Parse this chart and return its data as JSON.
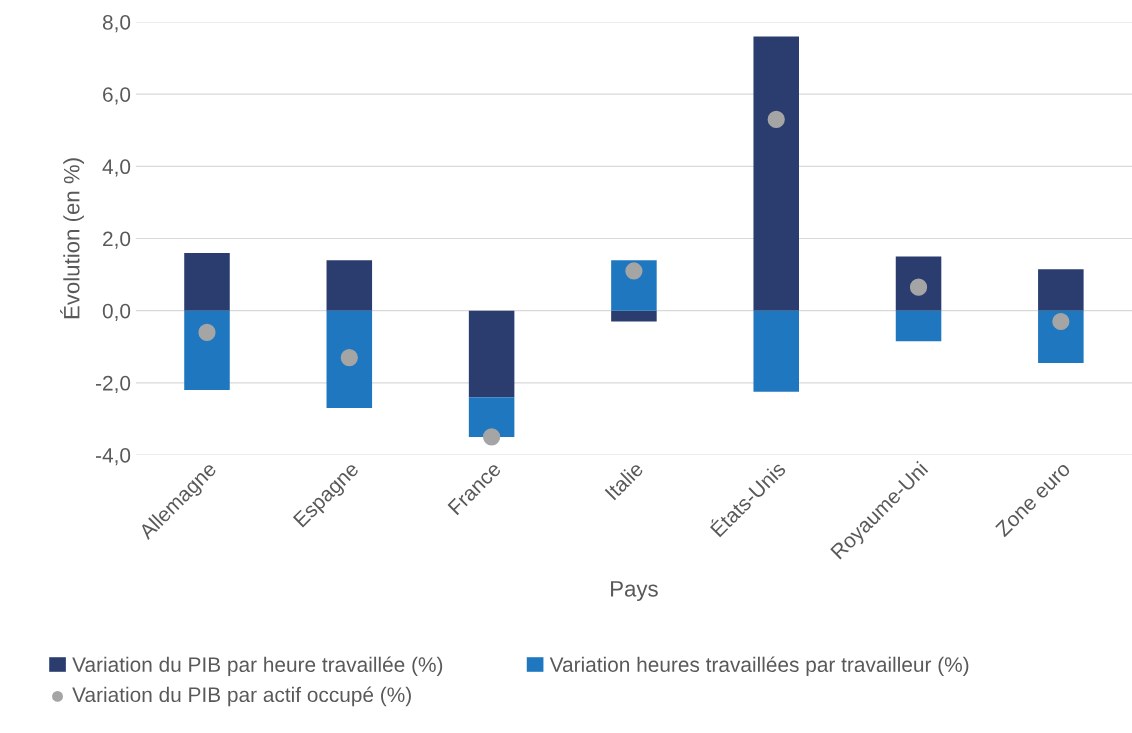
{
  "chart_data": {
    "type": "bar",
    "stacked": true,
    "xlabel": "Pays",
    "ylabel": "Évolution (en %)",
    "categories": [
      "Allemagne",
      "Espagne",
      "France",
      "Italie",
      "États-Unis",
      "Royaume-Uni",
      "Zone euro"
    ],
    "series": [
      {
        "name": "Variation du PIB par heure travaillée (%)",
        "color": "#2a3d6e",
        "values": [
          1.6,
          1.4,
          -2.4,
          -0.3,
          7.6,
          1.5,
          1.15
        ]
      },
      {
        "name": "Variation heures travaillées par travailleur (%)",
        "color": "#1f77c0",
        "values": [
          -2.2,
          -2.7,
          -1.1,
          1.4,
          -2.25,
          -0.85,
          -1.45
        ]
      },
      {
        "name": "Variation du PIB par actif occupé (%)",
        "type": "scatter",
        "color": "#a5a5a5",
        "x": [
          "Allemagne",
          "Espagne",
          "France",
          "Italie",
          "États-Unis",
          "Royaume-Uni",
          "Zone euro"
        ],
        "values": [
          -0.6,
          -1.3,
          -3.5,
          1.1,
          5.3,
          0.65,
          -0.3
        ]
      }
    ],
    "ylim": [
      -4,
      8
    ],
    "yticks": [
      {
        "value": -4,
        "label": "-4,0"
      },
      {
        "value": -2,
        "label": "-2,0"
      },
      {
        "value": 0,
        "label": "0,0"
      },
      {
        "value": 2,
        "label": "2,0"
      },
      {
        "value": 4,
        "label": "4,0"
      },
      {
        "value": 6,
        "label": "6,0"
      },
      {
        "value": 8,
        "label": "8,0"
      }
    ],
    "grid": "y",
    "legend": "bottom",
    "marker": "circle"
  }
}
